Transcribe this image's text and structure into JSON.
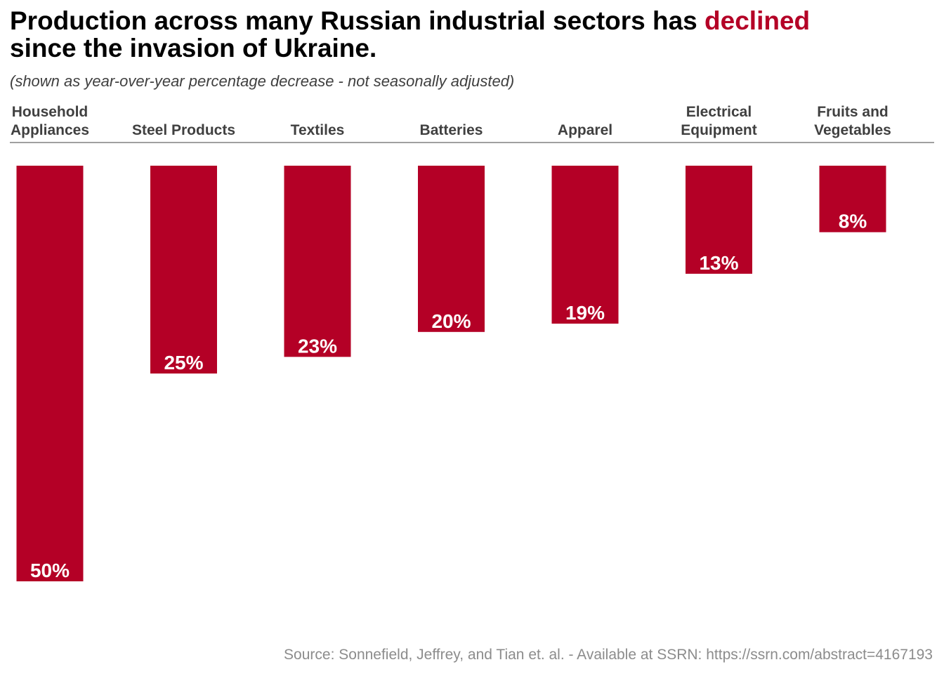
{
  "title": {
    "part1": "Production across many Russian industrial sectors has ",
    "accent": "declined",
    "part2": "since the invasion of Ukraine."
  },
  "subtitle": "(shown as year-over-year percentage decrease - not seasonally adjusted)",
  "source": "Source: Sonnefield, Jeffrey, and Tian et. al. - Available at SSRN: https://ssrn.com/abstract=4167193",
  "colors": {
    "bar": "#b40026",
    "accent": "#b40026",
    "category_label": "#404040",
    "axis_line": "#808080",
    "value_label": "#ffffff"
  },
  "chart_data": {
    "type": "bar",
    "orientation": "vertical-downward",
    "categories": [
      [
        "Household",
        "Appliances"
      ],
      [
        "Steel Products"
      ],
      [
        "Textiles"
      ],
      [
        "Batteries"
      ],
      [
        "Apparel"
      ],
      [
        "Electrical",
        "Equipment"
      ],
      [
        "Fruits and",
        "Vegetables"
      ]
    ],
    "values": [
      50,
      25,
      23,
      20,
      19,
      13,
      8
    ],
    "value_labels": [
      "50%",
      "25%",
      "23%",
      "20%",
      "19%",
      "13%",
      "8%"
    ],
    "unit": "%",
    "ylim": [
      0,
      50
    ],
    "grid": false,
    "legend": "none"
  }
}
